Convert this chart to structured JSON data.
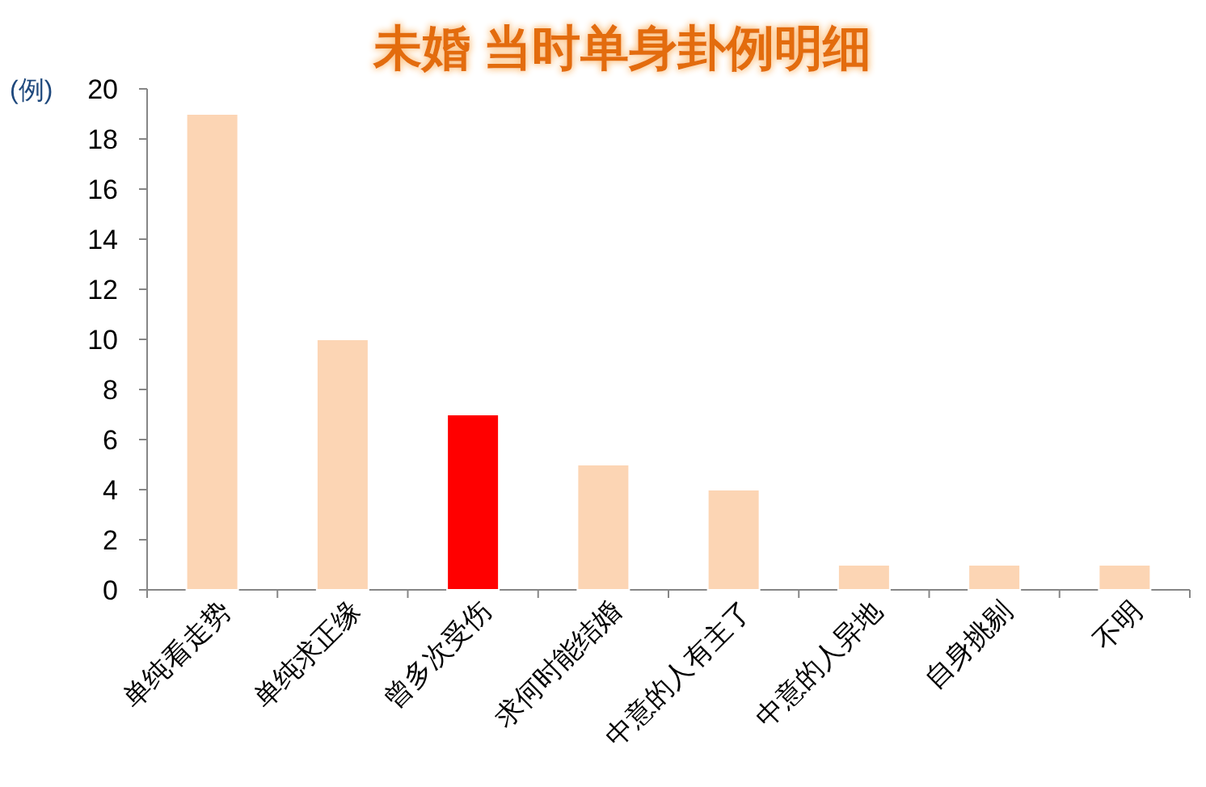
{
  "chart_data": {
    "type": "bar",
    "title": "未婚  当时单身卦例明细",
    "ylabel": "(例)",
    "categories": [
      "单纯看走势",
      "单纯求正缘",
      "曾多次受伤",
      "求何时能结婚",
      "中意的人有主了",
      "中意的人异地",
      "自身挑剔",
      "不明"
    ],
    "values": [
      19,
      10,
      7,
      5,
      4,
      1,
      1,
      1
    ],
    "colors": [
      "#fcd5b4",
      "#fcd5b4",
      "#ff0000",
      "#fcd5b4",
      "#fcd5b4",
      "#fcd5b4",
      "#fcd5b4",
      "#fcd5b4"
    ],
    "ylim": [
      0,
      20
    ],
    "yticks": [
      0,
      2,
      4,
      6,
      8,
      10,
      12,
      14,
      16,
      18,
      20
    ],
    "grid": false
  }
}
